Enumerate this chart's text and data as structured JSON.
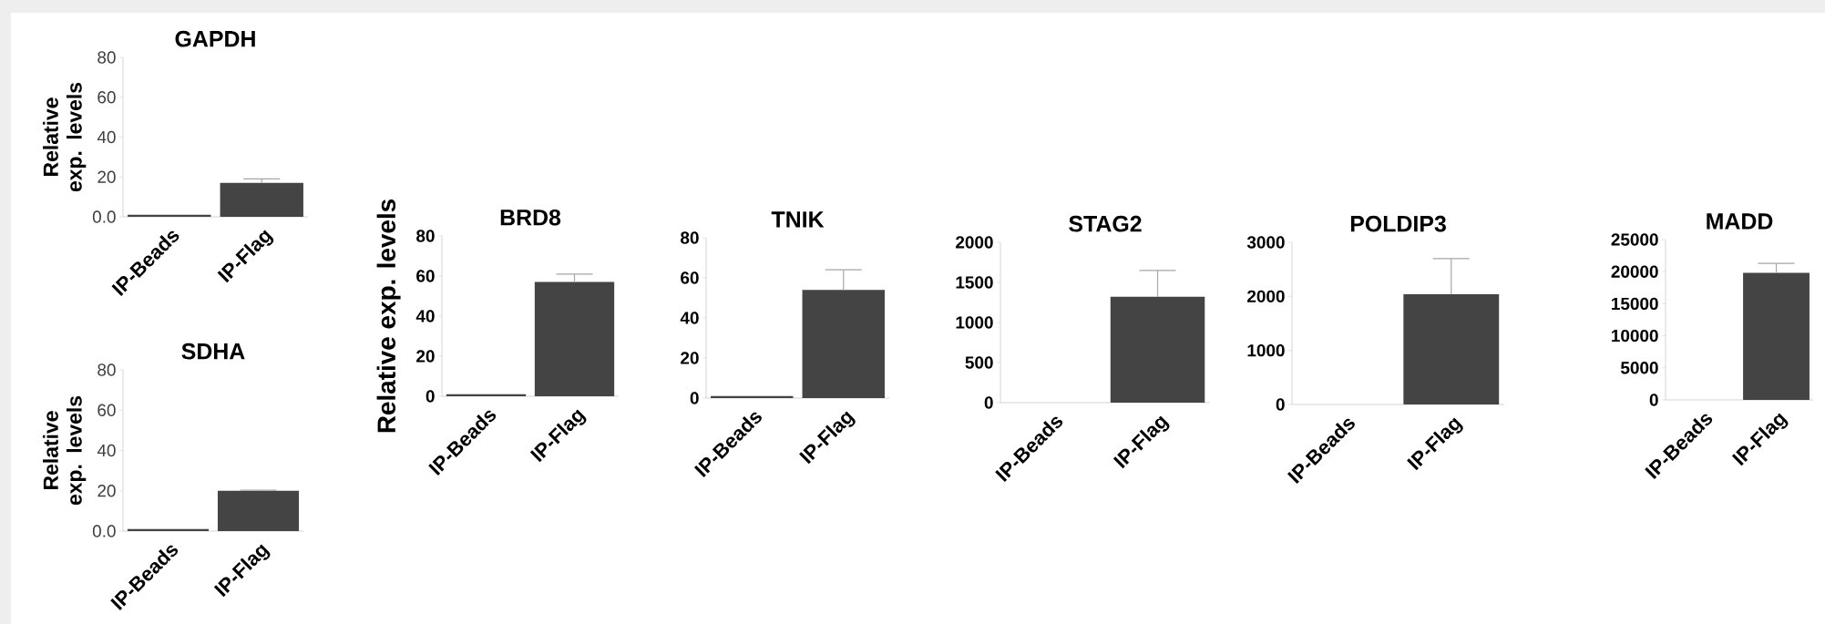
{
  "chart_data": [
    {
      "type": "bar",
      "title": "GAPDH",
      "ylabel": "Relative exp. levels",
      "categories": [
        "IP-Beads",
        "IP-Flag"
      ],
      "values": [
        1,
        17
      ],
      "errors": [
        null,
        2
      ],
      "color": "#444444",
      "ylim": [
        0,
        80
      ],
      "yticks": [
        {
          "value": 0,
          "label": "0.0"
        },
        20,
        40,
        60,
        80
      ]
    },
    {
      "type": "bar",
      "title": "SDHA",
      "ylabel": "Relative exp. levels",
      "categories": [
        "IP-Beads",
        "IP-Flag"
      ],
      "values": [
        1,
        20
      ],
      "errors": [
        null,
        0.3
      ],
      "color": "#444444",
      "ylim": [
        0,
        80
      ],
      "yticks": [
        {
          "value": 0,
          "label": "0.0"
        },
        20,
        40,
        60,
        80
      ]
    },
    {
      "type": "bar",
      "title": "BRD8",
      "ylabel": "Relative exp. levels",
      "categories": [
        "IP-Beads",
        "IP-Flag"
      ],
      "values": [
        1,
        57
      ],
      "errors": [
        null,
        4
      ],
      "color": "#444444",
      "ylim": [
        0,
        80
      ],
      "yticks": [
        0,
        20,
        40,
        60,
        80
      ]
    },
    {
      "type": "bar",
      "title": "TNIK",
      "categories": [
        "IP-Beads",
        "IP-Flag"
      ],
      "values": [
        1,
        54
      ],
      "errors": [
        null,
        10
      ],
      "color": "#444444",
      "ylim": [
        0,
        80
      ],
      "yticks": [
        0,
        20,
        40,
        60,
        80
      ]
    },
    {
      "type": "bar",
      "title": "STAG2",
      "categories": [
        "IP-Beads",
        "IP-Flag"
      ],
      "values": [
        0,
        1320
      ],
      "errors": [
        null,
        330
      ],
      "color": "#444444",
      "ylim": [
        0,
        2000
      ],
      "yticks": [
        0,
        500,
        1000,
        1500,
        2000
      ]
    },
    {
      "type": "bar",
      "title": "POLDIP3",
      "categories": [
        "IP-Beads",
        "IP-Flag"
      ],
      "values": [
        0,
        2040
      ],
      "errors": [
        null,
        660
      ],
      "color": "#444444",
      "ylim": [
        0,
        3000
      ],
      "yticks": [
        0,
        1000,
        2000,
        3000
      ]
    },
    {
      "type": "bar",
      "title": "MADD",
      "categories": [
        "IP-Beads",
        "IP-Flag"
      ],
      "values": [
        0,
        19800
      ],
      "errors": [
        null,
        1500
      ],
      "color": "#444444",
      "ylim": [
        0,
        25000
      ],
      "yticks": [
        0,
        5000,
        10000,
        15000,
        20000,
        25000
      ]
    }
  ]
}
